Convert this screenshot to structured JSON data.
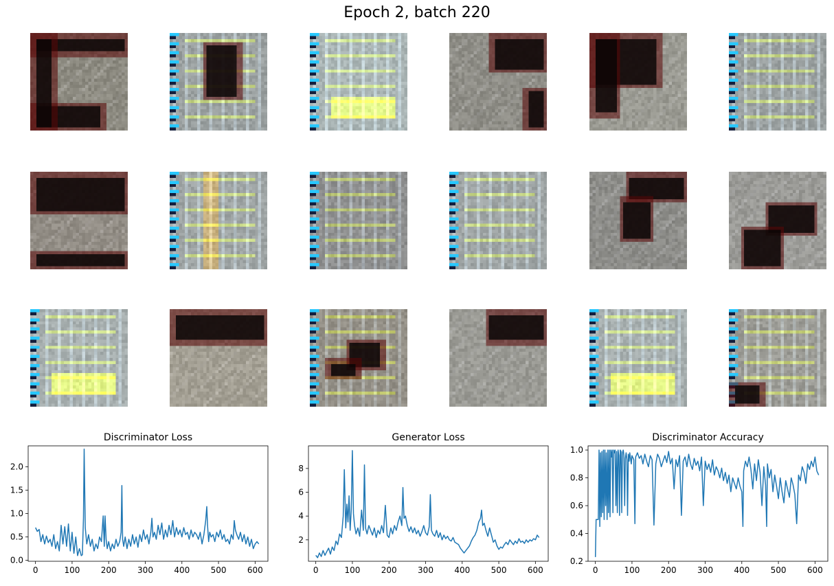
{
  "figure": {
    "title": "Epoch 2, batch 220"
  },
  "samples": [
    {
      "style": "dark-ring",
      "bg": "#8c8a80",
      "dark": [
        [
          0.0,
          0.0,
          1.0,
          0.22
        ],
        [
          0.0,
          0.7,
          0.75,
          1.0
        ],
        [
          0.0,
          0.0,
          0.25,
          1.0
        ]
      ]
    },
    {
      "style": "checker-dark-blob",
      "bg": "#9aa0a0",
      "dark": [
        [
          0.33,
          0.08,
          0.72,
          0.68
        ]
      ]
    },
    {
      "style": "checker-bright",
      "bg": "#a9b4b4",
      "dark": []
    },
    {
      "style": "dark-top-right",
      "bg": "#8e8d86",
      "dark": [
        [
          0.4,
          0.0,
          1.0,
          0.4
        ],
        [
          0.75,
          0.55,
          1.0,
          1.0
        ]
      ]
    },
    {
      "style": "dark-big-left",
      "bg": "#9a9a92",
      "dark": [
        [
          0.0,
          0.0,
          0.72,
          0.55
        ],
        [
          0.0,
          0.0,
          0.3,
          0.85
        ]
      ]
    },
    {
      "style": "checker",
      "bg": "#9aa0a0",
      "dark": []
    },
    {
      "style": "dark-top",
      "bg": "#928d85",
      "dark": [
        [
          0.0,
          0.0,
          1.0,
          0.42
        ],
        [
          0.0,
          0.8,
          1.0,
          1.0
        ]
      ]
    },
    {
      "style": "checker-stripe",
      "bg": "#9ea4a4",
      "dark": []
    },
    {
      "style": "checker-faint",
      "bg": "#8f9090",
      "dark": []
    },
    {
      "style": "checker",
      "bg": "#9ea4a4",
      "dark": []
    },
    {
      "style": "dark-blob-right",
      "bg": "#8c8c88",
      "dark": [
        [
          0.35,
          0.0,
          1.0,
          0.3
        ],
        [
          0.3,
          0.25,
          0.65,
          0.7
        ]
      ]
    },
    {
      "style": "dark-diag",
      "bg": "#9a9a96",
      "dark": [
        [
          0.35,
          0.3,
          0.9,
          0.65
        ],
        [
          0.1,
          0.55,
          0.55,
          1.0
        ]
      ]
    },
    {
      "style": "checker-bright",
      "bg": "#a6aeae",
      "dark": []
    },
    {
      "style": "dark-top",
      "bg": "#a29e92",
      "dark": [
        [
          0.0,
          0.0,
          1.0,
          0.35
        ]
      ]
    },
    {
      "style": "checker-blob",
      "bg": "#938f86",
      "dark": [
        [
          0.35,
          0.3,
          0.75,
          0.62
        ],
        [
          0.15,
          0.5,
          0.5,
          0.7
        ]
      ]
    },
    {
      "style": "dark-top-right",
      "bg": "#9a9a94",
      "dark": [
        [
          0.35,
          0.0,
          1.0,
          0.35
        ]
      ]
    },
    {
      "style": "checker-bright",
      "bg": "#a6aeae",
      "dark": []
    },
    {
      "style": "checker-corner",
      "bg": "#9a9a94",
      "dark": [
        [
          0.0,
          0.72,
          0.35,
          1.0
        ]
      ]
    }
  ],
  "chart_data": [
    {
      "type": "line",
      "title": "Discriminator Loss",
      "xlabel": "",
      "ylabel": "",
      "xlim": [
        -20,
        635
      ],
      "ylim": [
        -0.02,
        2.45
      ],
      "xticks": [
        0,
        100,
        200,
        300,
        400,
        500,
        600
      ],
      "yticks": [
        0.0,
        0.5,
        1.0,
        1.5,
        2.0
      ],
      "ytick_labels": [
        "0.0",
        "0.5",
        "1.0",
        "1.5",
        "2.0"
      ],
      "series": [
        {
          "color": "#1f77b4",
          "x": [
            0,
            5,
            10,
            15,
            20,
            25,
            30,
            35,
            40,
            45,
            50,
            55,
            60,
            65,
            70,
            75,
            80,
            85,
            90,
            95,
            100,
            105,
            110,
            115,
            120,
            125,
            128,
            131,
            133,
            136,
            140,
            145,
            150,
            155,
            160,
            165,
            170,
            175,
            180,
            185,
            188,
            190,
            193,
            196,
            200,
            205,
            210,
            215,
            220,
            225,
            230,
            234,
            236,
            238,
            241,
            245,
            250,
            255,
            260,
            265,
            270,
            275,
            280,
            285,
            290,
            295,
            300,
            305,
            310,
            315,
            318,
            321,
            325,
            330,
            335,
            340,
            345,
            350,
            355,
            360,
            365,
            370,
            375,
            380,
            385,
            390,
            395,
            400,
            405,
            410,
            415,
            420,
            425,
            430,
            435,
            440,
            445,
            450,
            455,
            460,
            465,
            468,
            470,
            473,
            476,
            480,
            485,
            490,
            495,
            500,
            505,
            510,
            515,
            520,
            525,
            530,
            535,
            540,
            543,
            546,
            550,
            555,
            560,
            565,
            570,
            575,
            580,
            585,
            590,
            595,
            600,
            605,
            610
          ],
          "y": [
            0.7,
            0.62,
            0.66,
            0.4,
            0.55,
            0.35,
            0.52,
            0.38,
            0.45,
            0.3,
            0.55,
            0.25,
            0.4,
            0.2,
            0.75,
            0.35,
            0.72,
            0.3,
            0.78,
            0.2,
            0.6,
            0.15,
            0.5,
            0.1,
            0.25,
            0.1,
            0.12,
            0.9,
            2.38,
            0.7,
            0.35,
            0.55,
            0.3,
            0.45,
            0.2,
            0.35,
            0.25,
            0.5,
            0.4,
            0.95,
            0.3,
            0.95,
            0.45,
            0.25,
            0.4,
            0.2,
            0.35,
            0.25,
            0.45,
            0.3,
            0.4,
            0.6,
            1.6,
            0.45,
            0.3,
            0.5,
            0.25,
            0.45,
            0.3,
            0.55,
            0.35,
            0.5,
            0.28,
            0.55,
            0.4,
            0.65,
            0.45,
            0.55,
            0.35,
            0.6,
            0.9,
            0.5,
            0.6,
            0.45,
            0.75,
            0.55,
            0.8,
            0.45,
            0.65,
            0.5,
            0.75,
            0.55,
            0.85,
            0.5,
            0.7,
            0.55,
            0.65,
            0.5,
            0.7,
            0.55,
            0.6,
            0.45,
            0.65,
            0.5,
            0.6,
            0.55,
            0.45,
            0.6,
            0.35,
            0.55,
            0.85,
            1.15,
            0.75,
            0.4,
            0.6,
            0.5,
            0.55,
            0.4,
            0.6,
            0.5,
            0.65,
            0.45,
            0.55,
            0.4,
            0.45,
            0.35,
            0.55,
            0.45,
            0.85,
            0.65,
            0.55,
            0.45,
            0.6,
            0.4,
            0.55,
            0.35,
            0.5,
            0.3,
            0.45,
            0.25,
            0.35,
            0.4,
            0.35
          ]
        }
      ]
    },
    {
      "type": "line",
      "title": "Generator Loss",
      "xlabel": "",
      "ylabel": "",
      "xlim": [
        -20,
        635
      ],
      "ylim": [
        0.2,
        9.9
      ],
      "xticks": [
        0,
        100,
        200,
        300,
        400,
        500,
        600
      ],
      "yticks": [
        2,
        4,
        6,
        8
      ],
      "ytick_labels": [
        "2",
        "4",
        "6",
        "8"
      ],
      "series": [
        {
          "color": "#1f77b4",
          "x": [
            0,
            5,
            10,
            15,
            20,
            25,
            30,
            35,
            40,
            45,
            50,
            55,
            60,
            65,
            70,
            75,
            78,
            82,
            85,
            88,
            91,
            94,
            97,
            100,
            103,
            106,
            110,
            115,
            120,
            125,
            130,
            133,
            136,
            140,
            145,
            150,
            155,
            160,
            165,
            170,
            175,
            180,
            185,
            190,
            195,
            200,
            205,
            210,
            215,
            220,
            225,
            230,
            235,
            238,
            241,
            245,
            250,
            255,
            260,
            265,
            270,
            275,
            280,
            285,
            290,
            295,
            300,
            305,
            310,
            313,
            316,
            320,
            325,
            330,
            335,
            340,
            345,
            350,
            355,
            360,
            365,
            370,
            375,
            380,
            385,
            390,
            395,
            400,
            405,
            410,
            415,
            420,
            425,
            430,
            435,
            440,
            445,
            450,
            453,
            456,
            460,
            465,
            470,
            475,
            480,
            485,
            490,
            495,
            500,
            505,
            510,
            515,
            520,
            525,
            530,
            535,
            540,
            545,
            550,
            555,
            560,
            565,
            570,
            575,
            580,
            585,
            590,
            595,
            600,
            605,
            610
          ],
          "y": [
            0.7,
            0.5,
            0.9,
            0.6,
            1.1,
            0.7,
            1.0,
            1.3,
            0.8,
            1.4,
            1.1,
            1.9,
            1.6,
            2.5,
            2.2,
            4.0,
            7.9,
            3.0,
            5.0,
            3.5,
            5.7,
            2.8,
            4.5,
            9.5,
            4.2,
            3.2,
            2.5,
            3.0,
            2.3,
            4.5,
            2.8,
            8.3,
            3.0,
            2.5,
            3.2,
            2.8,
            2.4,
            3.0,
            2.2,
            2.8,
            2.5,
            3.2,
            2.6,
            4.9,
            2.4,
            2.2,
            3.0,
            2.5,
            3.2,
            2.8,
            3.5,
            4.0,
            3.2,
            6.4,
            3.8,
            4.0,
            3.2,
            2.7,
            3.1,
            2.6,
            3.0,
            2.5,
            2.8,
            2.3,
            2.7,
            3.2,
            2.6,
            2.4,
            3.1,
            5.8,
            2.8,
            2.5,
            2.3,
            2.8,
            2.2,
            2.6,
            2.0,
            2.4,
            2.1,
            2.3,
            2.0,
            1.9,
            2.2,
            1.8,
            1.7,
            1.6,
            1.3,
            1.1,
            0.9,
            1.1,
            1.3,
            1.5,
            1.9,
            2.2,
            2.4,
            2.8,
            3.5,
            3.8,
            4.5,
            3.2,
            3.4,
            2.8,
            2.3,
            3.0,
            2.4,
            1.8,
            2.0,
            1.5,
            1.2,
            1.4,
            1.3,
            1.6,
            1.8,
            1.6,
            2.0,
            1.8,
            1.6,
            1.9,
            1.7,
            2.1,
            1.8,
            1.9,
            1.7,
            2.0,
            1.8,
            2.0,
            1.9,
            2.1,
            2.0,
            2.4,
            2.2
          ]
        }
      ]
    },
    {
      "type": "line",
      "title": "Discriminator Accuracy",
      "xlabel": "",
      "ylabel": "",
      "xlim": [
        -20,
        635
      ],
      "ylim": [
        0.2,
        1.03
      ],
      "xticks": [
        0,
        100,
        200,
        300,
        400,
        500,
        600
      ],
      "yticks": [
        0.2,
        0.4,
        0.6,
        0.8,
        1.0
      ],
      "ytick_labels": [
        "0.2",
        "0.4",
        "0.6",
        "0.8",
        "1.0"
      ],
      "series": [
        {
          "color": "#1f77b4",
          "x": [
            0,
            2,
            4,
            8,
            10,
            12,
            14,
            16,
            18,
            20,
            22,
            24,
            26,
            28,
            30,
            32,
            34,
            36,
            38,
            40,
            42,
            44,
            46,
            48,
            50,
            52,
            54,
            56,
            58,
            60,
            62,
            64,
            66,
            68,
            70,
            72,
            74,
            76,
            78,
            80,
            82,
            84,
            86,
            88,
            90,
            92,
            94,
            96,
            98,
            100,
            105,
            108,
            110,
            115,
            120,
            125,
            130,
            135,
            140,
            145,
            150,
            155,
            160,
            165,
            170,
            175,
            180,
            185,
            190,
            195,
            200,
            205,
            210,
            215,
            220,
            225,
            230,
            235,
            240,
            245,
            250,
            255,
            260,
            265,
            270,
            275,
            280,
            285,
            290,
            295,
            300,
            305,
            310,
            315,
            320,
            325,
            330,
            335,
            340,
            345,
            350,
            355,
            360,
            365,
            370,
            375,
            380,
            385,
            390,
            395,
            400,
            403,
            405,
            410,
            415,
            420,
            425,
            430,
            435,
            440,
            445,
            450,
            455,
            460,
            465,
            468,
            470,
            475,
            480,
            485,
            490,
            495,
            500,
            505,
            510,
            515,
            520,
            525,
            530,
            535,
            540,
            545,
            550,
            555,
            560,
            565,
            570,
            575,
            580,
            585,
            590,
            595,
            600,
            605,
            610
          ],
          "y": [
            0.23,
            0.5,
            0.5,
            0.5,
            1.0,
            0.45,
            0.98,
            0.52,
            0.99,
            0.55,
            1.0,
            0.5,
            1.0,
            0.6,
            0.98,
            0.5,
            1.0,
            0.55,
            1.0,
            0.52,
            1.0,
            0.95,
            1.0,
            0.55,
            1.0,
            0.98,
            1.0,
            0.6,
            0.99,
            0.55,
            1.0,
            0.96,
            0.53,
            1.0,
            0.99,
            0.55,
            0.98,
            1.0,
            0.96,
            0.6,
            0.94,
            0.98,
            0.93,
            0.53,
            0.97,
            0.92,
            0.98,
            0.94,
            0.9,
            0.96,
            0.93,
            0.47,
            0.95,
            0.98,
            0.94,
            0.96,
            0.9,
            0.97,
            0.92,
            0.88,
            0.96,
            0.93,
            0.46,
            0.9,
            0.97,
            0.94,
            0.88,
            0.92,
            0.96,
            0.91,
            0.99,
            0.9,
            0.94,
            0.72,
            0.93,
            0.88,
            0.96,
            0.53,
            0.92,
            0.95,
            0.88,
            0.97,
            0.9,
            0.86,
            0.94,
            0.89,
            0.92,
            0.85,
            0.95,
            0.6,
            0.92,
            0.86,
            0.9,
            0.84,
            0.93,
            0.82,
            0.88,
            0.85,
            0.8,
            0.87,
            0.78,
            0.84,
            0.76,
            0.82,
            0.7,
            0.8,
            0.76,
            0.72,
            0.8,
            0.74,
            0.7,
            0.45,
            0.85,
            0.92,
            0.88,
            0.95,
            0.86,
            0.72,
            0.9,
            0.78,
            0.93,
            0.84,
            0.6,
            0.88,
            0.75,
            0.45,
            0.9,
            0.8,
            0.86,
            0.7,
            0.82,
            0.74,
            0.65,
            0.8,
            0.7,
            0.62,
            0.78,
            0.72,
            0.66,
            0.8,
            0.75,
            0.68,
            0.47,
            0.82,
            0.78,
            0.88,
            0.84,
            0.76,
            0.9,
            0.86,
            0.92,
            0.88,
            0.95,
            0.85,
            0.82
          ]
        }
      ]
    }
  ]
}
